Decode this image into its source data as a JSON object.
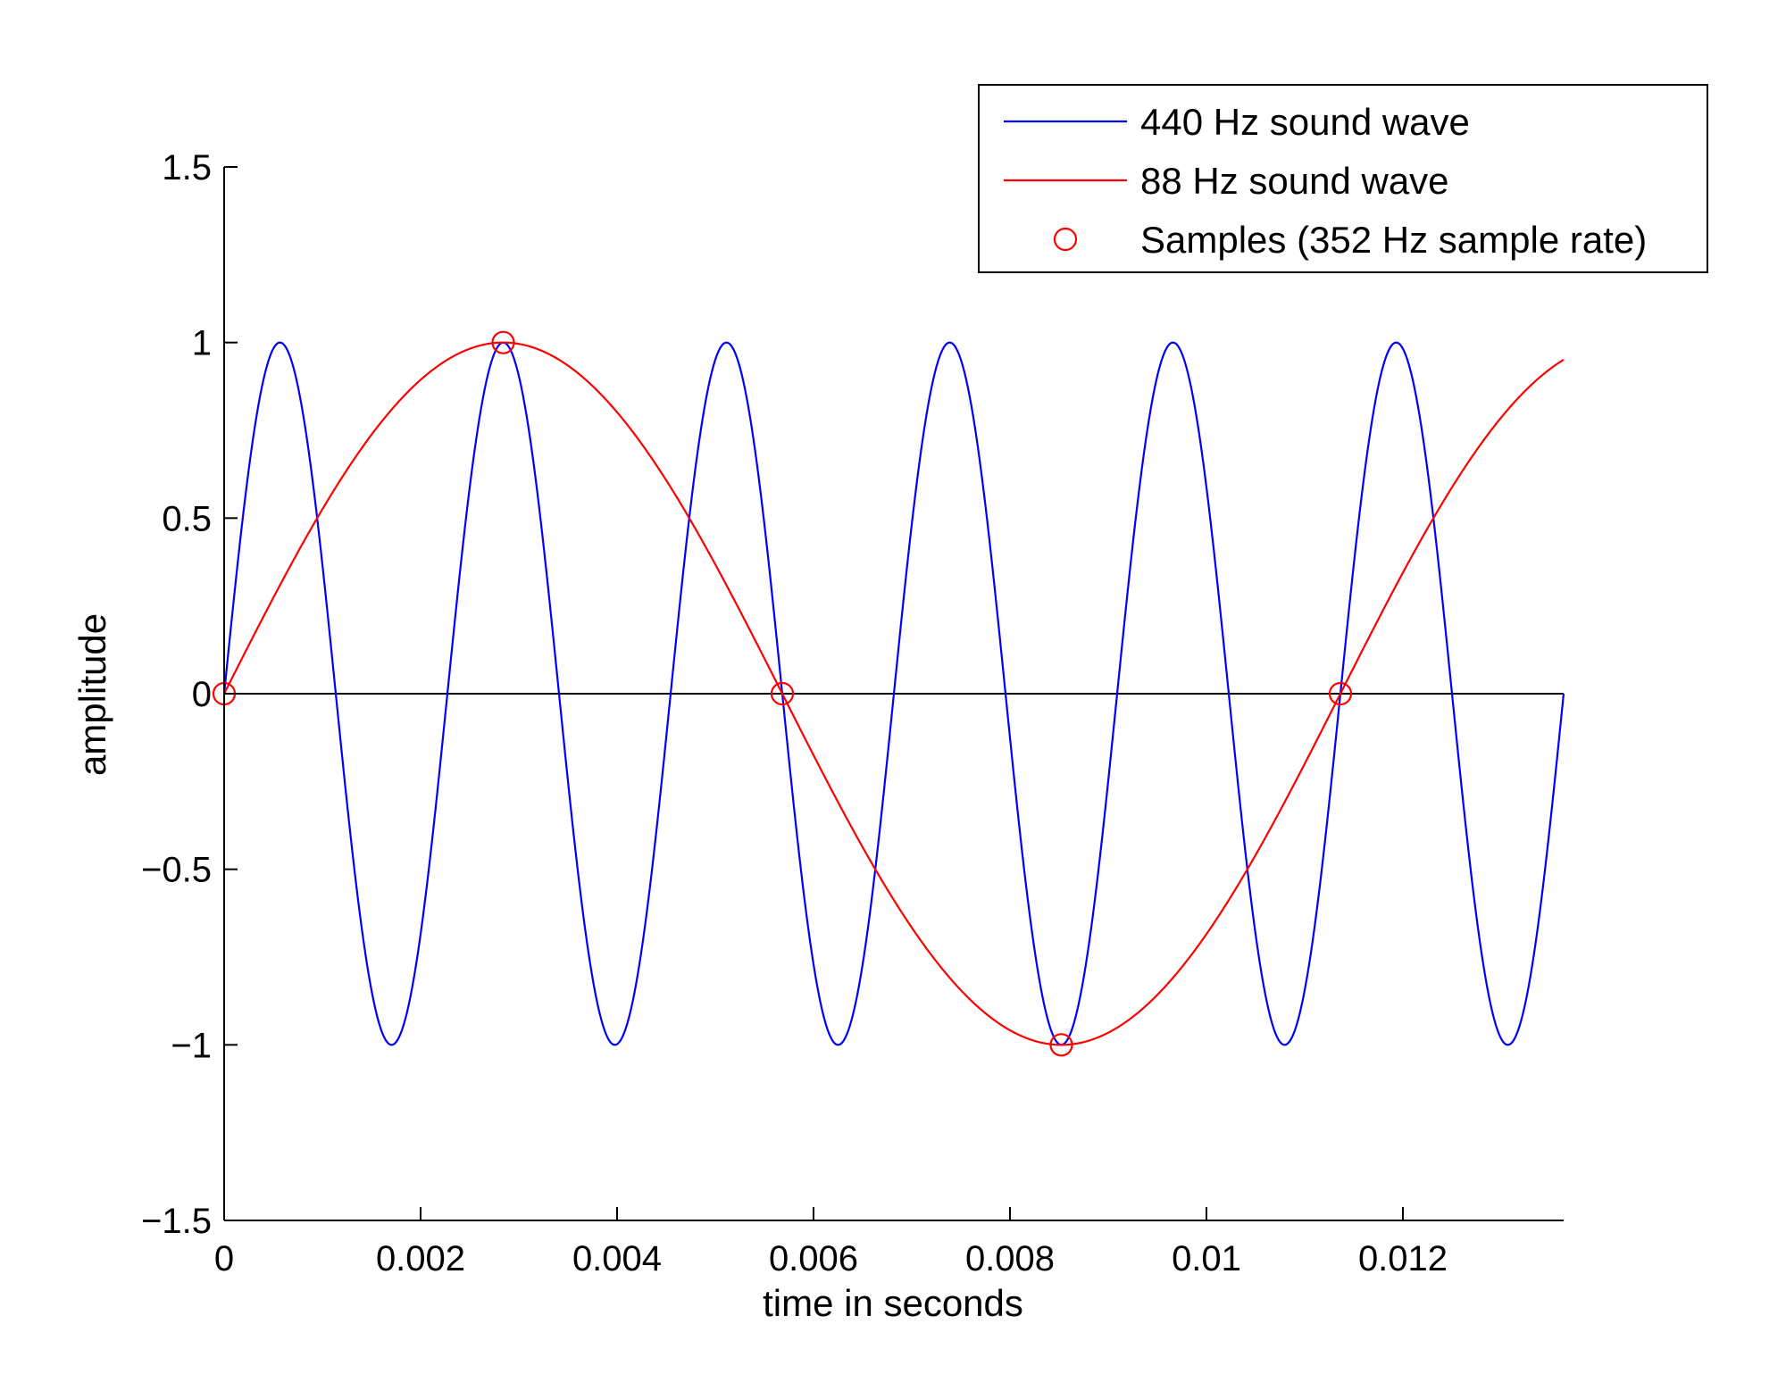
{
  "chart_data": {
    "type": "line",
    "title": "",
    "xlabel": "time in seconds",
    "ylabel": "amplitude",
    "xlim": [
      0,
      0.0136364
    ],
    "ylim": [
      -1.5,
      1.5
    ],
    "xticks": [
      0,
      0.002,
      0.004,
      0.006,
      0.008,
      0.01,
      0.012
    ],
    "xtick_labels": [
      "0",
      "0.002",
      "0.004",
      "0.006",
      "0.008",
      "0.01",
      "0.012"
    ],
    "yticks": [
      -1.5,
      -1,
      -0.5,
      0,
      0.5,
      1,
      1.5
    ],
    "ytick_labels": [
      "−1.5",
      "−1",
      "−0.5",
      "0",
      "0.5",
      "1",
      "1.5"
    ],
    "grid": false,
    "legend_position": "top-right",
    "zero_line": true,
    "series": [
      {
        "name": "440 Hz sound wave",
        "kind": "sine",
        "frequency_hz": 440,
        "amplitude": 1,
        "x_range": [
          0,
          0.0136364
        ],
        "color": "#0000ff"
      },
      {
        "name": "88 Hz sound wave",
        "kind": "sine",
        "frequency_hz": 88,
        "amplitude": 1,
        "x_range": [
          0,
          0.0136364
        ],
        "color": "#ff0000"
      },
      {
        "name": "Samples (352 Hz sample rate)",
        "kind": "markers",
        "marker": "circle",
        "color": "#ff0000",
        "x": [
          0,
          0.0028409,
          0.0056818,
          0.0085227,
          0.0113636
        ],
        "y": [
          0,
          1,
          0,
          -1,
          0
        ]
      }
    ]
  }
}
